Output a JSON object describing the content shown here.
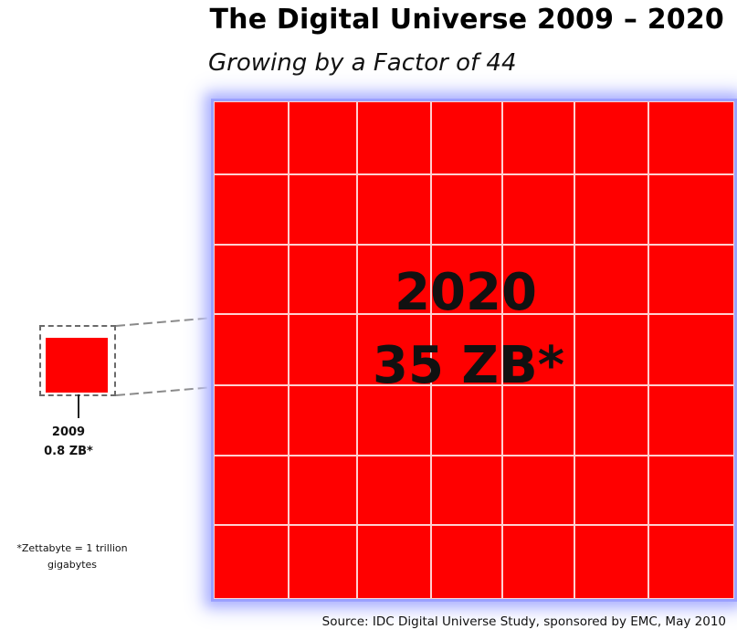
{
  "title": "The Digital Universe 2009 – 2020",
  "subtitle": "Growing by a Factor of 44",
  "big_block": {
    "year": "2020",
    "size": "35 ZB*",
    "color": "#ff0000"
  },
  "small_block": {
    "year": "2009",
    "size": "0.8 ZB*",
    "color": "#ff0000"
  },
  "footnote": "*Zettabyte = 1 trillion gigabytes",
  "source": "Source: IDC Digital Universe Study, sponsored by EMC, May 2010",
  "colors": {
    "block_red": "#ff0000",
    "glow": "#9aa0ff",
    "frame": "#6a6a6a"
  }
}
